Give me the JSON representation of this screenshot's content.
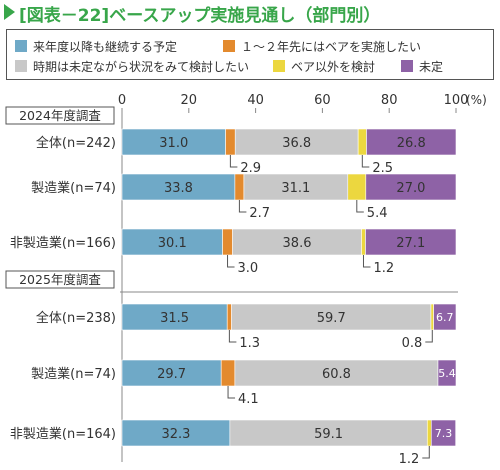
{
  "title": "[図表－22]ベースアップ実施見通し（部門別）",
  "chart_data": {
    "type": "bar",
    "orientation": "horizontal",
    "stacked": true,
    "xlim": [
      0,
      100
    ],
    "x_ticks": [
      "0",
      "20",
      "40",
      "60",
      "80",
      "100"
    ],
    "x_unit": "(%)",
    "legend_position": "top",
    "grid": false,
    "series": [
      {
        "name": "来年度以降も継続する予定",
        "color": "#6fa9c7"
      },
      {
        "name": "１～２年先にはベアを実施したい",
        "color": "#e38a2e"
      },
      {
        "name": "時期は未定ながら状況をみて検討したい",
        "color": "#c8c8c8"
      },
      {
        "name": "ベア以外を検討",
        "color": "#ecd73f"
      },
      {
        "name": "未定",
        "color": "#8e62a6"
      }
    ],
    "groups": [
      {
        "header": "2024年度調査",
        "rows": [
          {
            "label": "全体(n=242)",
            "values": [
              31.0,
              2.9,
              36.8,
              2.5,
              26.8
            ],
            "labels": [
              "31.0",
              "2.9",
              "36.8",
              "2.5",
              "26.8"
            ]
          },
          {
            "label": "製造業(n=74)",
            "values": [
              33.8,
              2.7,
              31.1,
              5.4,
              27.0
            ],
            "labels": [
              "33.8",
              "2.7",
              "31.1",
              "5.4",
              "27.0"
            ]
          },
          {
            "label": "非製造業(n=166)",
            "values": [
              30.1,
              3.0,
              38.6,
              1.2,
              27.1
            ],
            "labels": [
              "30.1",
              "3.0",
              "38.6",
              "1.2",
              "27.1"
            ]
          }
        ]
      },
      {
        "header": "2025年度調査",
        "rows": [
          {
            "label": "全体(n=238)",
            "values": [
              31.5,
              1.3,
              59.7,
              0.8,
              6.7
            ],
            "labels": [
              "31.5",
              "1.3",
              "59.7",
              "0.8",
              "6.7"
            ]
          },
          {
            "label": "製造業(n=74)",
            "values": [
              29.7,
              4.1,
              60.8,
              0.0,
              5.4
            ],
            "labels": [
              "29.7",
              "4.1",
              "60.8",
              "",
              "5.4"
            ]
          },
          {
            "label": "非製造業(n=164)",
            "values": [
              32.3,
              0.0,
              59.1,
              1.2,
              7.3
            ],
            "labels": [
              "32.3",
              "",
              "59.1",
              "1.2",
              "7.3"
            ]
          }
        ]
      }
    ]
  }
}
